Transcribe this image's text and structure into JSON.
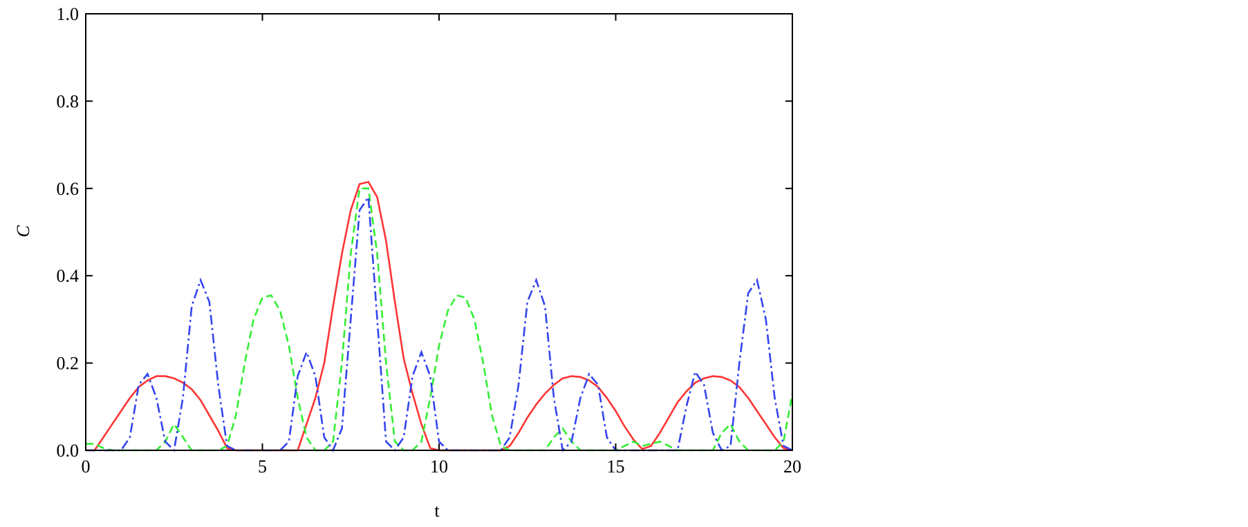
{
  "chart_data": {
    "type": "line",
    "xlabel": "t",
    "ylabel": "C",
    "xlim": [
      0,
      20
    ],
    "ylim": [
      0,
      1
    ],
    "xticks": [
      0,
      5,
      10,
      15,
      20
    ],
    "yticks": [
      {
        "value": 0,
        "label": "0.0"
      },
      {
        "value": 0.2,
        "label": "0.2"
      },
      {
        "value": 0.4,
        "label": "0.4"
      },
      {
        "value": 0.6,
        "label": "0.6"
      },
      {
        "value": 0.8,
        "label": "0.8"
      },
      {
        "value": 1,
        "label": "1.0"
      }
    ],
    "x": [
      0,
      0.25,
      0.5,
      0.75,
      1,
      1.25,
      1.5,
      1.75,
      2,
      2.25,
      2.5,
      2.75,
      3,
      3.25,
      3.5,
      3.75,
      4,
      4.25,
      4.5,
      4.75,
      5,
      5.25,
      5.5,
      5.75,
      6,
      6.25,
      6.5,
      6.75,
      7,
      7.25,
      7.5,
      7.75,
      8,
      8.25,
      8.5,
      8.75,
      9,
      9.25,
      9.5,
      9.75,
      10,
      10.25,
      10.5,
      10.75,
      11,
      11.25,
      11.5,
      11.75,
      12,
      12.25,
      12.5,
      12.75,
      13,
      13.25,
      13.5,
      13.75,
      14,
      14.25,
      14.5,
      14.75,
      15,
      15.25,
      15.5,
      15.75,
      16,
      16.25,
      16.5,
      16.75,
      17,
      17.25,
      17.5,
      17.75,
      18,
      18.25,
      18.5,
      18.75,
      19,
      19.25,
      19.5,
      19.75,
      20
    ],
    "series": [
      {
        "color": "#ff3333",
        "dash": "solid",
        "values": [
          0,
          0,
          0.03,
          0.06,
          0.09,
          0.12,
          0.145,
          0.16,
          0.17,
          0.17,
          0.165,
          0.155,
          0.14,
          0.115,
          0.08,
          0.045,
          0.005,
          0,
          0,
          0,
          0,
          0,
          0,
          0,
          0,
          0.06,
          0.12,
          0.2,
          0.33,
          0.45,
          0.55,
          0.61,
          0.615,
          0.58,
          0.48,
          0.34,
          0.21,
          0.13,
          0.06,
          0.005,
          0,
          0,
          0,
          0,
          0,
          0,
          0,
          0,
          0.01,
          0.04,
          0.075,
          0.105,
          0.13,
          0.15,
          0.165,
          0.17,
          0.168,
          0.16,
          0.145,
          0.12,
          0.09,
          0.055,
          0.025,
          0.003,
          0.01,
          0.04,
          0.075,
          0.11,
          0.135,
          0.155,
          0.165,
          0.17,
          0.168,
          0.16,
          0.145,
          0.12,
          0.09,
          0.06,
          0.03,
          0.005,
          0
        ]
      },
      {
        "color": "#33ee33",
        "dash": "dashed",
        "values": [
          0.015,
          0.015,
          0.005,
          0,
          0,
          0,
          0,
          0,
          0,
          0.02,
          0.06,
          0.03,
          0,
          0,
          0,
          0,
          0.01,
          0.08,
          0.2,
          0.3,
          0.35,
          0.355,
          0.32,
          0.24,
          0.12,
          0.03,
          0,
          0,
          0.02,
          0.2,
          0.45,
          0.6,
          0.6,
          0.45,
          0.2,
          0.02,
          0,
          0,
          0.02,
          0.12,
          0.24,
          0.32,
          0.355,
          0.35,
          0.3,
          0.2,
          0.08,
          0.01,
          0,
          0,
          0,
          0,
          0,
          0.03,
          0.05,
          0.02,
          0,
          0,
          0,
          0,
          0,
          0.01,
          0.02,
          0.01,
          0.015,
          0.02,
          0.01,
          0,
          0,
          0,
          0,
          0,
          0.04,
          0.06,
          0.02,
          0,
          0,
          0,
          0,
          0.02,
          0.13
        ]
      },
      {
        "color": "#3344ee",
        "dash": "dashdot",
        "values": [
          0,
          0,
          0,
          0,
          0,
          0.03,
          0.15,
          0.175,
          0.12,
          0.02,
          0,
          0.12,
          0.33,
          0.39,
          0.34,
          0.15,
          0.01,
          0,
          0,
          0,
          0,
          0,
          0,
          0.02,
          0.17,
          0.225,
          0.17,
          0.03,
          0,
          0.05,
          0.3,
          0.55,
          0.58,
          0.3,
          0.02,
          0,
          0.03,
          0.17,
          0.225,
          0.17,
          0.02,
          0,
          0,
          0,
          0,
          0,
          0,
          0,
          0.03,
          0.15,
          0.34,
          0.39,
          0.33,
          0.12,
          0,
          0.02,
          0.12,
          0.175,
          0.15,
          0.03,
          0,
          0,
          0,
          0,
          0,
          0,
          0,
          0,
          0.1,
          0.18,
          0.15,
          0.04,
          0,
          0.01,
          0.2,
          0.36,
          0.39,
          0.3,
          0.12,
          0.01,
          0
        ]
      }
    ]
  }
}
